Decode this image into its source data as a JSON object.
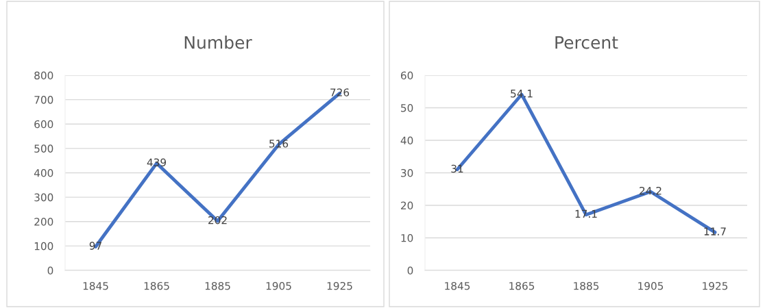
{
  "chart_data": [
    {
      "type": "line",
      "title": "Number",
      "categories": [
        "1845",
        "1865",
        "1885",
        "1905",
        "1925"
      ],
      "series": [
        {
          "color": "#4472c4",
          "values": [
            97,
            439,
            202,
            516,
            726
          ]
        }
      ],
      "ylim": [
        0,
        800
      ],
      "yticks": [
        0,
        100,
        200,
        300,
        400,
        500,
        600,
        700,
        800
      ],
      "grid": "y",
      "data_labels": true,
      "legend": false
    },
    {
      "type": "line",
      "title": "Percent",
      "categories": [
        "1845",
        "1865",
        "1885",
        "1905",
        "1925"
      ],
      "series": [
        {
          "color": "#4472c4",
          "values": [
            31,
            54.1,
            17.1,
            24.2,
            11.7
          ]
        }
      ],
      "ylim": [
        0,
        60
      ],
      "yticks": [
        0,
        10,
        20,
        30,
        40,
        50,
        60
      ],
      "grid": "y",
      "data_labels": true,
      "legend": false
    }
  ]
}
